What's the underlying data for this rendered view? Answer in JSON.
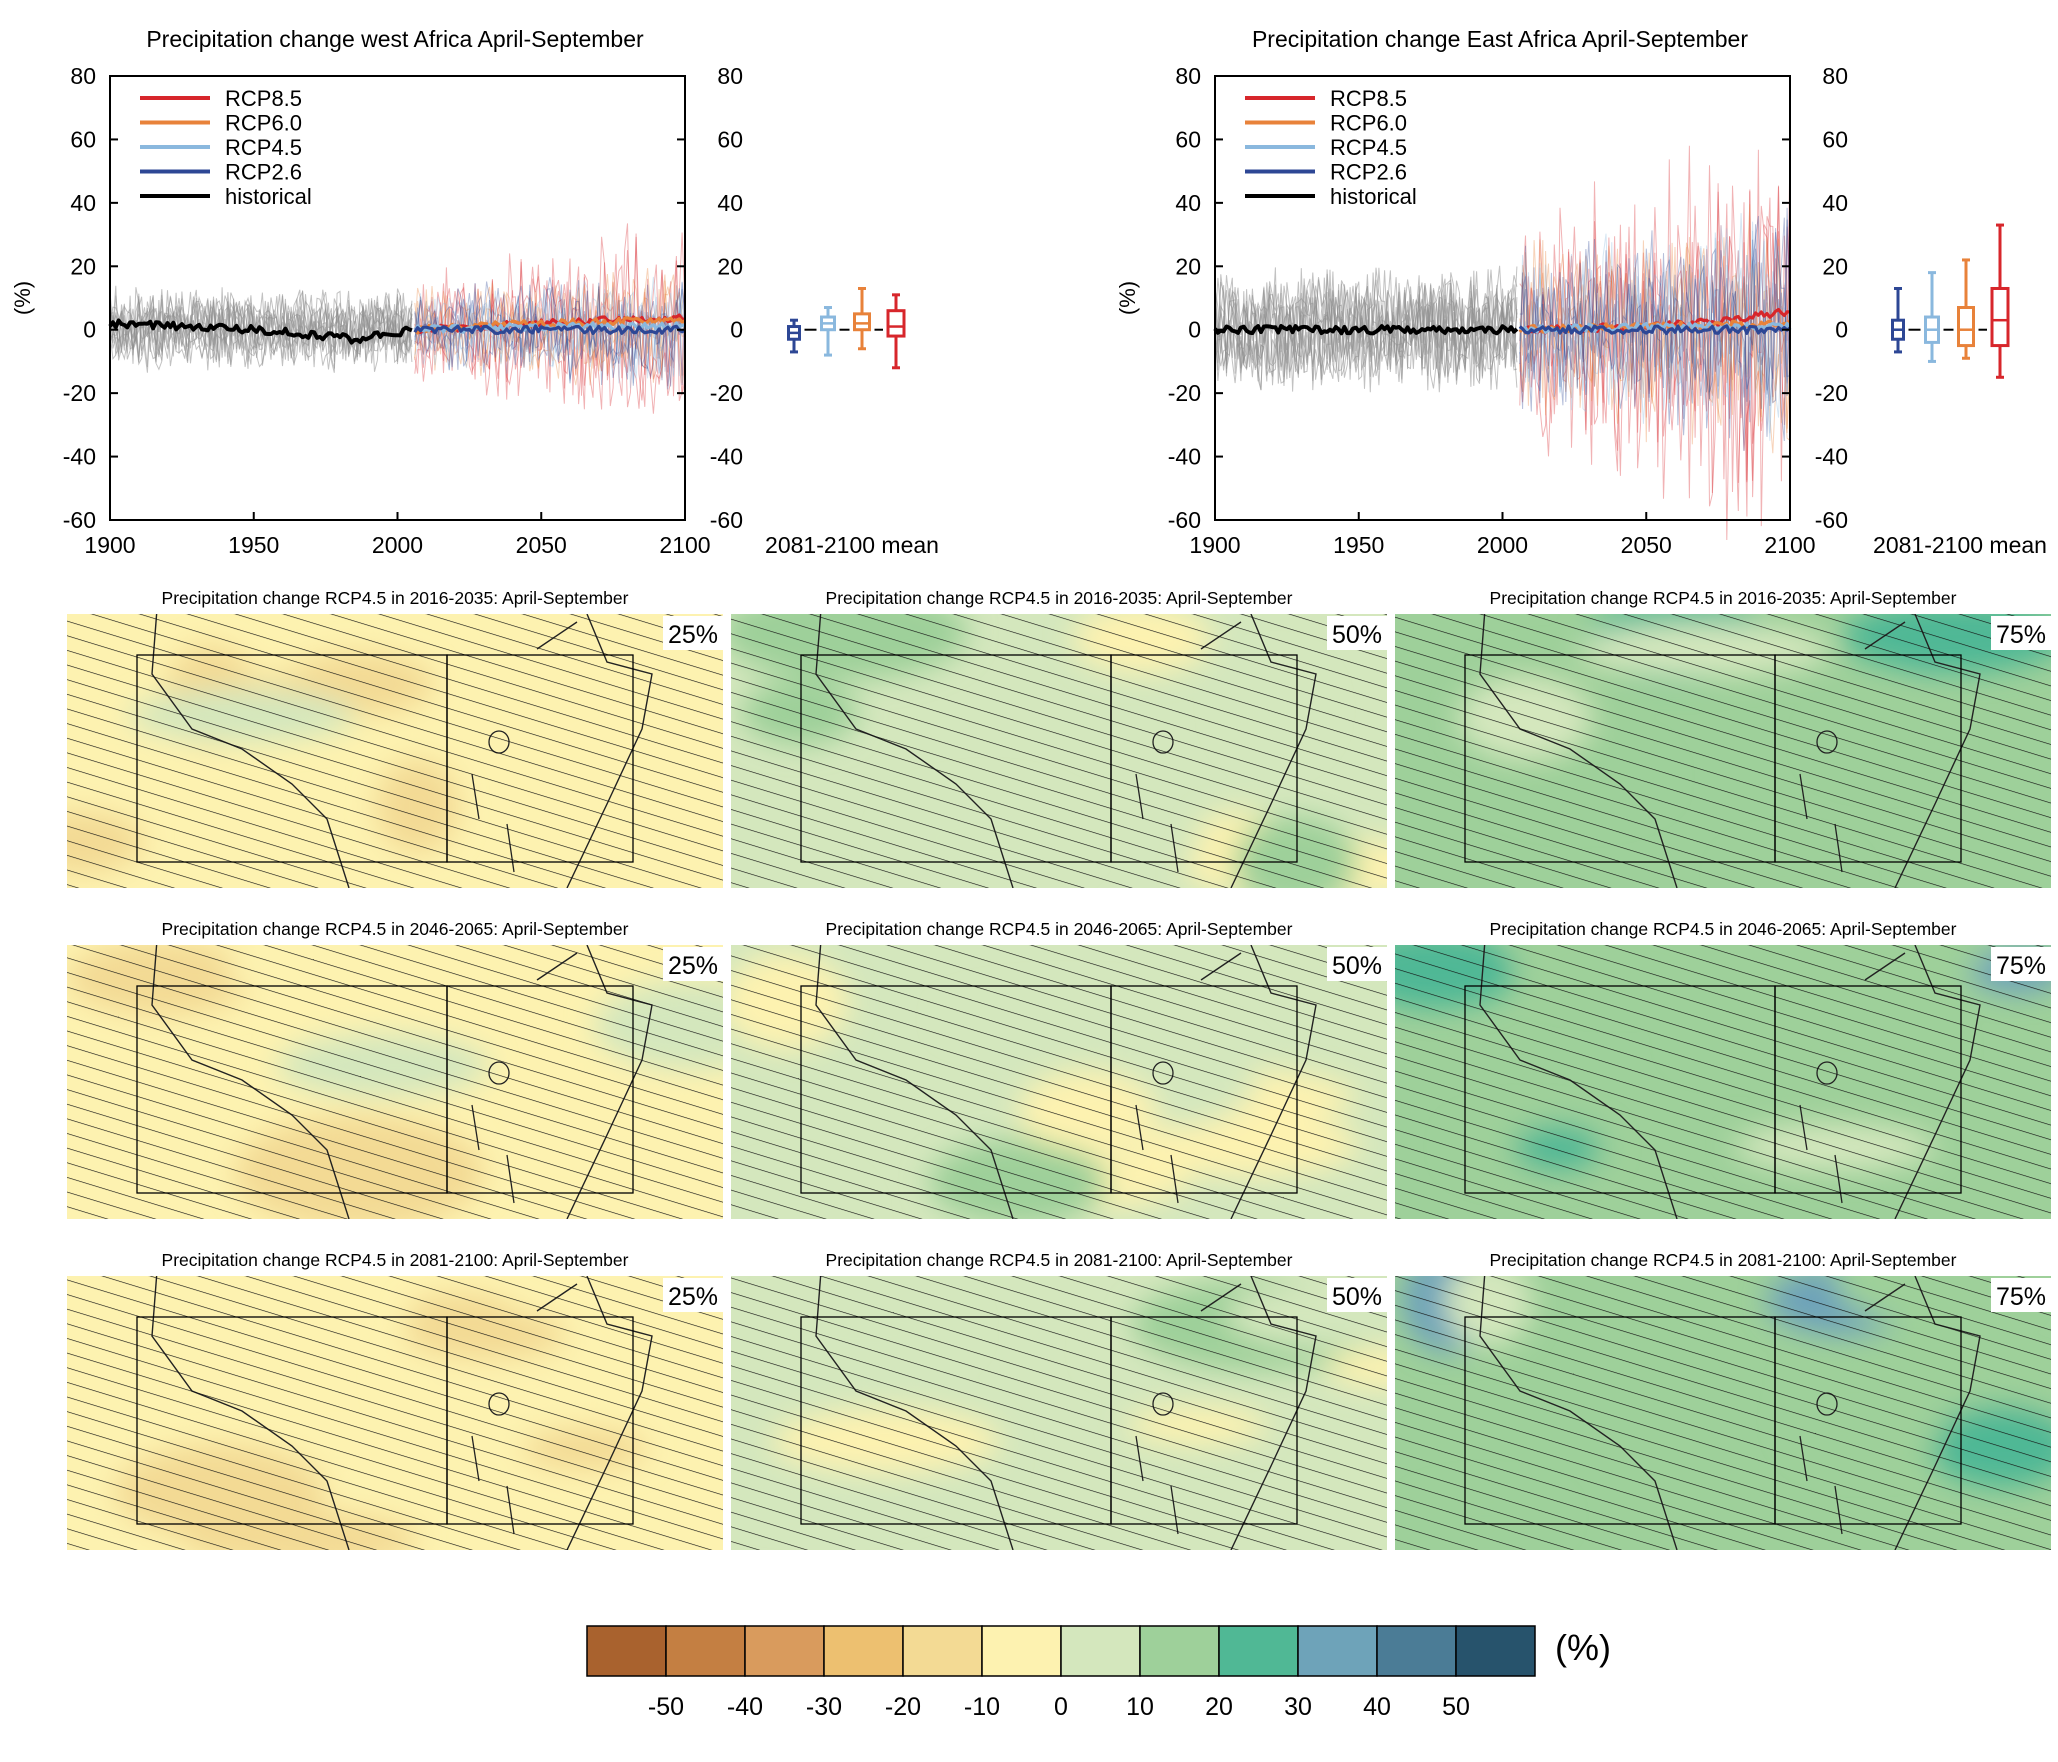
{
  "colors": {
    "rcp85": "#d7262b",
    "rcp60": "#e8823a",
    "rcp45": "#8ab8de",
    "rcp26": "#2d4795",
    "historical": "#000000",
    "hist_ensemble": "#8f8f8f"
  },
  "chart_data": [
    {
      "type": "line",
      "title": "Precipitation change west Africa April-September",
      "xlabel": "",
      "ylabel": "(%)",
      "xlim": [
        1900,
        2100
      ],
      "ylim": [
        -60,
        80
      ],
      "x_ticks": [
        "1900",
        "1950",
        "2000",
        "2050",
        "2100"
      ],
      "y_ticks": [
        "-60",
        "-40",
        "-20",
        "0",
        "20",
        "40",
        "60",
        "80"
      ],
      "legend": {
        "placement": "top-left",
        "entries": [
          "RCP8.5",
          "RCP6.0",
          "RCP4.5",
          "RCP2.6",
          "historical"
        ]
      },
      "series": [
        {
          "name": "historical",
          "x": [
            1900,
            1925,
            1950,
            1975,
            1985,
            2005
          ],
          "y": [
            2,
            1,
            0,
            -2,
            -3,
            0
          ]
        },
        {
          "name": "RCP2.6",
          "x": [
            2006,
            2050,
            2100
          ],
          "y": [
            0,
            0,
            0
          ]
        },
        {
          "name": "RCP4.5",
          "x": [
            2006,
            2050,
            2100
          ],
          "y": [
            0,
            1,
            1
          ]
        },
        {
          "name": "RCP6.0",
          "x": [
            2006,
            2050,
            2100
          ],
          "y": [
            0,
            2,
            3
          ]
        },
        {
          "name": "RCP8.5",
          "x": [
            2006,
            2050,
            2100
          ],
          "y": [
            0,
            2,
            4
          ]
        }
      ],
      "boxes_label": "2081-2100 mean",
      "boxes": [
        {
          "scenario": "RCP2.6",
          "min": -7,
          "q1": -3,
          "median": -1,
          "q3": 1,
          "max": 3
        },
        {
          "scenario": "RCP4.5",
          "min": -8,
          "q1": 0,
          "median": 2,
          "q3": 4,
          "max": 7
        },
        {
          "scenario": "RCP6.0",
          "min": -6,
          "q1": 0,
          "median": 2,
          "q3": 5,
          "max": 13
        },
        {
          "scenario": "RCP8.5",
          "min": -12,
          "q1": -2,
          "median": 1,
          "q3": 6,
          "max": 11
        }
      ]
    },
    {
      "type": "line",
      "title": "Precipitation change East Africa April-September",
      "xlabel": "",
      "ylabel": "(%)",
      "xlim": [
        1900,
        2100
      ],
      "ylim": [
        -60,
        80
      ],
      "x_ticks": [
        "1900",
        "1950",
        "2000",
        "2050",
        "2100"
      ],
      "y_ticks": [
        "-60",
        "-40",
        "-20",
        "0",
        "20",
        "40",
        "60",
        "80"
      ],
      "legend": {
        "placement": "top-left",
        "entries": [
          "RCP8.5",
          "RCP6.0",
          "RCP4.5",
          "RCP2.6",
          "historical"
        ]
      },
      "series": [
        {
          "name": "historical",
          "x": [
            1900,
            1950,
            2005
          ],
          "y": [
            0,
            0,
            0
          ]
        },
        {
          "name": "RCP2.6",
          "x": [
            2006,
            2050,
            2100
          ],
          "y": [
            0,
            0,
            0
          ]
        },
        {
          "name": "RCP4.5",
          "x": [
            2006,
            2050,
            2100
          ],
          "y": [
            0,
            1,
            1
          ]
        },
        {
          "name": "RCP6.0",
          "x": [
            2006,
            2050,
            2100
          ],
          "y": [
            0,
            1,
            2
          ]
        },
        {
          "name": "RCP8.5",
          "x": [
            2006,
            2050,
            2080,
            2100
          ],
          "y": [
            0,
            1,
            3,
            6
          ]
        }
      ],
      "boxes_label": "2081-2100 mean",
      "boxes": [
        {
          "scenario": "RCP2.6",
          "min": -7,
          "q1": -3,
          "median": 0,
          "q3": 3,
          "max": 13
        },
        {
          "scenario": "RCP4.5",
          "min": -10,
          "q1": -4,
          "median": 0,
          "q3": 4,
          "max": 18
        },
        {
          "scenario": "RCP6.0",
          "min": -9,
          "q1": -5,
          "median": 0,
          "q3": 7,
          "max": 22
        },
        {
          "scenario": "RCP8.5",
          "min": -15,
          "q1": -5,
          "median": 3,
          "q3": 13,
          "max": 33
        }
      ]
    },
    {
      "type": "heatmap",
      "maps": [
        {
          "title": "Precipitation change RCP4.5 in 2016-2035: April-September",
          "percentile": "25%",
          "mean_change": -8
        },
        {
          "title": "Precipitation change RCP4.5 in 2016-2035: April-September",
          "percentile": "50%",
          "mean_change": 3
        },
        {
          "title": "Precipitation change RCP4.5 in 2016-2035: April-September",
          "percentile": "75%",
          "mean_change": 12
        },
        {
          "title": "Precipitation change RCP4.5 in 2046-2065: April-September",
          "percentile": "25%",
          "mean_change": -10
        },
        {
          "title": "Precipitation change RCP4.5 in 2046-2065: April-September",
          "percentile": "50%",
          "mean_change": 4
        },
        {
          "title": "Precipitation change RCP4.5 in 2046-2065: April-September",
          "percentile": "75%",
          "mean_change": 16
        },
        {
          "title": "Precipitation change RCP4.5 in 2081-2100: April-September",
          "percentile": "25%",
          "mean_change": -8
        },
        {
          "title": "Precipitation change RCP4.5 in 2081-2100: April-September",
          "percentile": "50%",
          "mean_change": 5
        },
        {
          "title": "Precipitation change RCP4.5 in 2081-2100: April-September",
          "percentile": "75%",
          "mean_change": 18
        }
      ],
      "colorbar": {
        "unit": "(%)",
        "ticks": [
          "-50",
          "-40",
          "-30",
          "-20",
          "-10",
          "0",
          "10",
          "20",
          "30",
          "40",
          "50"
        ],
        "colors": [
          "#a9622e",
          "#c47f42",
          "#d99b5d",
          "#edc070",
          "#f3da94",
          "#fdf2b0",
          "#d4e7bd",
          "#9ed09a",
          "#50b895",
          "#6ea3b9",
          "#4b7c96",
          "#27536c"
        ]
      }
    }
  ]
}
